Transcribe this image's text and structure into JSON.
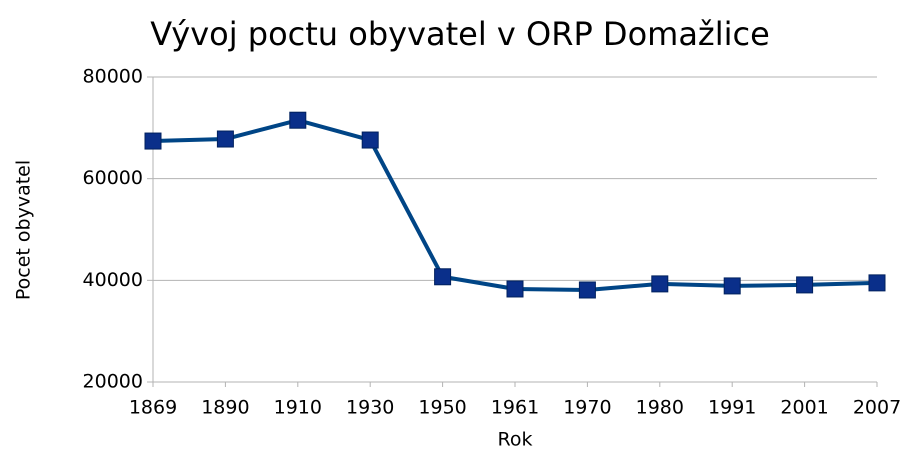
{
  "chart_data": {
    "type": "line",
    "title": "Vývoj poctu obyvatel v ORP Domažlice",
    "x_label": "Rok",
    "y_label": "Pocet obyvatel",
    "categories": [
      "1869",
      "1890",
      "1910",
      "1930",
      "1950",
      "1961",
      "1970",
      "1980",
      "1991",
      "2001",
      "2007"
    ],
    "series": [
      {
        "name": "Pocet obyvatel",
        "color": "#004586",
        "values": [
          67400,
          67800,
          71500,
          67600,
          40700,
          38300,
          38100,
          39300,
          38900,
          39100,
          39500
        ]
      }
    ],
    "ylim": [
      20000,
      80000
    ],
    "yticks": [
      20000,
      40000,
      60000,
      80000
    ],
    "grid": true
  }
}
